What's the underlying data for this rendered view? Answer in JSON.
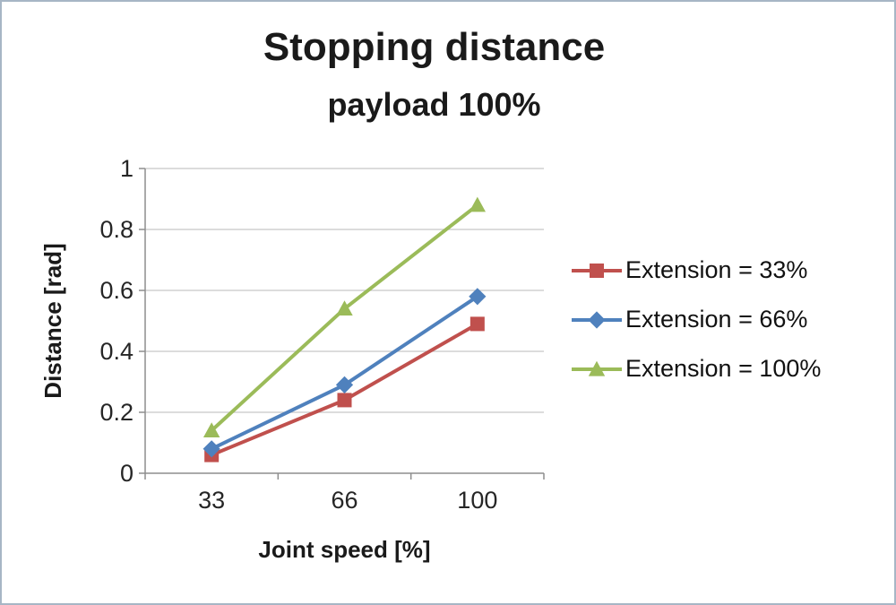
{
  "chart_data": {
    "type": "line",
    "title": "Stopping distance",
    "subtitle": "payload 100%",
    "xlabel": "Joint speed [%]",
    "ylabel": "Distance [rad]",
    "categories": [
      "33",
      "66",
      "100"
    ],
    "series": [
      {
        "name": "Extension = 33%",
        "values": [
          0.06,
          0.24,
          0.49
        ],
        "color": "#C0504D",
        "marker": "square"
      },
      {
        "name": "Extension = 66%",
        "values": [
          0.08,
          0.29,
          0.58
        ],
        "color": "#4F81BD",
        "marker": "diamond"
      },
      {
        "name": "Extension = 100%",
        "values": [
          0.14,
          0.54,
          0.88
        ],
        "color": "#9BBB59",
        "marker": "triangle"
      }
    ],
    "ylim": [
      0,
      1
    ],
    "ytick_step": 0.2,
    "ytick_labels": [
      "0",
      "0.2",
      "0.4",
      "0.6",
      "0.8",
      "1"
    ],
    "grid": true,
    "legend_position": "right",
    "colors": {
      "gridline": "#c6c6c6",
      "axis": "#8e8e8e",
      "text": "#262626",
      "frame_border": "#a7b6c5"
    }
  }
}
